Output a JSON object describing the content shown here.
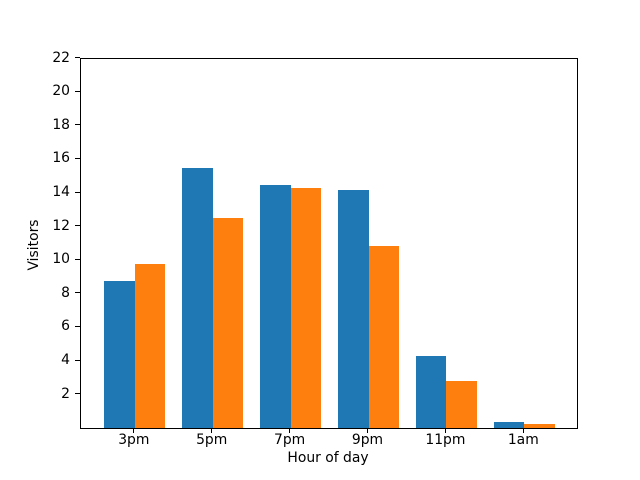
{
  "chart_data": {
    "type": "bar",
    "xlabel": "Hour of day",
    "ylabel": "Visitors",
    "categories": [
      "3pm",
      "5pm",
      "7pm",
      "9pm",
      "11pm",
      "1am"
    ],
    "series": [
      {
        "name": "blue",
        "color": "#1f77b4",
        "values": [
          8.75,
          15.5,
          14.5,
          14.15,
          4.3,
          0.35
        ]
      },
      {
        "name": "orange",
        "color": "#ff7f0e",
        "values": [
          9.8,
          12.5,
          14.3,
          10.85,
          2.8,
          0.25
        ]
      }
    ],
    "ylim": [
      0,
      22
    ],
    "yticks": [
      2,
      4,
      6,
      8,
      10,
      12,
      14,
      16,
      18,
      20,
      22
    ],
    "grid": false,
    "legend": false,
    "background": "#ffffff"
  }
}
